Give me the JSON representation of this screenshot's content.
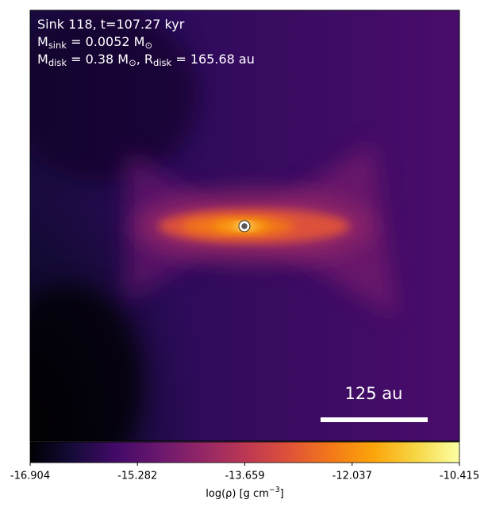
{
  "chart_data": {
    "type": "density-map",
    "annotations": [
      [
        "Sink 118, t=107.27 kyr"
      ],
      [
        "M",
        {
          "sub": "sink"
        },
        " = 0.0052 M",
        {
          "sub": "⊙"
        }
      ],
      [
        "M",
        {
          "sub": "disk"
        },
        " = 0.38 M",
        {
          "sub": "⊙"
        },
        ", R",
        {
          "sub": "disk"
        },
        " = 165.68 au"
      ]
    ],
    "scale_bar": {
      "label": "125 au"
    },
    "colorbar": {
      "colormap": "inferno",
      "clim": [
        -16.904,
        -10.415
      ],
      "ticks": [
        -16.904,
        -15.282,
        -13.659,
        -12.037,
        -10.415
      ],
      "label": [
        "log(ρ) [g cm",
        {
          "sup": "−3"
        },
        "]"
      ]
    }
  }
}
